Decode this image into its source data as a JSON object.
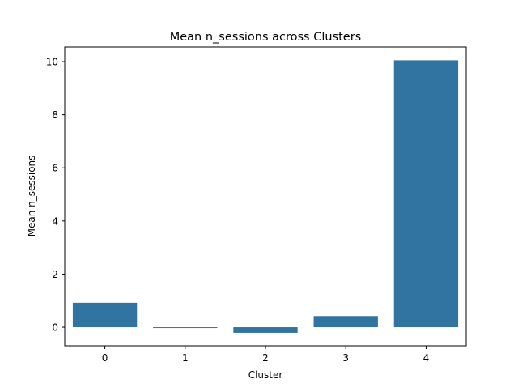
{
  "chart_data": {
    "type": "bar",
    "title": "Mean n_sessions across Clusters",
    "xlabel": "Cluster",
    "ylabel": "Mean n_sessions",
    "categories": [
      "0",
      "1",
      "2",
      "3",
      "4"
    ],
    "values": [
      0.92,
      -0.03,
      -0.21,
      0.42,
      10.05
    ],
    "ylim": [
      -0.7,
      10.55
    ],
    "yticks": [
      0,
      2,
      4,
      6,
      8,
      10
    ],
    "ytick_labels": [
      "0",
      "2",
      "4",
      "6",
      "8",
      "10"
    ],
    "grid": false,
    "legend": "none",
    "bar_color": "#3274a1"
  }
}
